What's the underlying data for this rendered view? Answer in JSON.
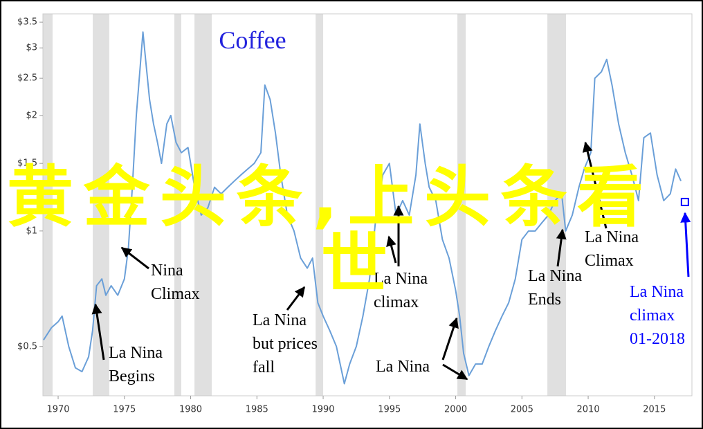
{
  "chart_data": {
    "type": "line",
    "title": "Coffee",
    "log_scale_y": true,
    "grid": false,
    "xlim": [
      1968.85,
      2017.83
    ],
    "ylim": [
      0.372,
      3.68
    ],
    "xticks": [
      1970,
      1975,
      1980,
      1985,
      1990,
      1995,
      2000,
      2005,
      2010,
      2015
    ],
    "yticks": [
      {
        "value": 0.5,
        "label": "$0.5"
      },
      {
        "value": 1,
        "label": "$1"
      },
      {
        "value": 1.5,
        "label": "$1.5"
      },
      {
        "value": 2,
        "label": "$2"
      },
      {
        "value": 2.5,
        "label": "$2.5"
      },
      {
        "value": 3,
        "label": "$3"
      },
      {
        "value": 3.5,
        "label": "$3.5"
      }
    ],
    "shaded_periods": [
      [
        1968.85,
        1969.58
      ],
      [
        1972.61,
        1973.86
      ],
      [
        1978.77,
        1979.29
      ],
      [
        1980.29,
        1981.59
      ],
      [
        1989.43,
        1990.0
      ],
      [
        2000.13,
        2000.76
      ],
      [
        2006.92,
        2008.33
      ]
    ],
    "shade_color": "#e0e0e0",
    "series": [
      {
        "name": "Coffee",
        "color": "#6a9fd8",
        "x": [
          1968.9,
          1969.5,
          1970.0,
          1970.3,
          1970.8,
          1971.3,
          1971.8,
          1972.3,
          1972.6,
          1972.9,
          1973.3,
          1973.6,
          1974.0,
          1974.5,
          1975.0,
          1975.3,
          1975.6,
          1975.9,
          1976.2,
          1976.4,
          1976.6,
          1976.9,
          1977.2,
          1977.5,
          1977.8,
          1978.2,
          1978.5,
          1978.9,
          1979.3,
          1979.8,
          1980.3,
          1980.8,
          1981.3,
          1981.8,
          1982.3,
          1982.8,
          1983.3,
          1983.8,
          1984.3,
          1984.8,
          1985.3,
          1985.6,
          1986.0,
          1986.4,
          1986.8,
          1987.3,
          1987.8,
          1988.3,
          1988.8,
          1989.2,
          1989.6,
          1990.0,
          1990.5,
          1991.0,
          1991.6,
          1992.0,
          1992.5,
          1993.0,
          1993.5,
          1994.0,
          1994.5,
          1995.0,
          1995.5,
          1996.0,
          1996.5,
          1997.0,
          1997.3,
          1997.7,
          1998.0,
          1998.5,
          1999.0,
          1999.5,
          2000.0,
          2000.3,
          2000.6,
          2001.0,
          2001.5,
          2002.0,
          2002.5,
          2003.0,
          2003.5,
          2004.0,
          2004.5,
          2005.0,
          2005.5,
          2006.0,
          2006.5,
          2007.0,
          2007.5,
          2008.0,
          2008.3,
          2008.8,
          2009.3,
          2009.7,
          2010.2,
          2010.5,
          2011.0,
          2011.4,
          2011.8,
          2012.3,
          2012.8,
          2013.3,
          2013.8,
          2014.2,
          2014.7,
          2015.2,
          2015.7,
          2016.2,
          2016.6,
          2017.0
        ],
        "values": [
          0.52,
          0.56,
          0.58,
          0.6,
          0.5,
          0.44,
          0.43,
          0.47,
          0.55,
          0.72,
          0.75,
          0.68,
          0.72,
          0.68,
          0.75,
          0.9,
          1.3,
          2.0,
          2.7,
          3.3,
          2.8,
          2.2,
          1.9,
          1.7,
          1.5,
          1.9,
          2.0,
          1.7,
          1.6,
          1.65,
          1.3,
          1.1,
          1.15,
          1.3,
          1.25,
          1.3,
          1.35,
          1.4,
          1.45,
          1.5,
          1.6,
          2.4,
          2.2,
          1.8,
          1.4,
          1.1,
          1.0,
          0.85,
          0.8,
          0.85,
          0.65,
          0.6,
          0.55,
          0.5,
          0.4,
          0.45,
          0.5,
          0.6,
          0.75,
          1.1,
          1.4,
          1.5,
          1.1,
          1.2,
          1.1,
          1.4,
          1.9,
          1.5,
          1.3,
          1.2,
          0.95,
          0.85,
          0.7,
          0.6,
          0.48,
          0.42,
          0.45,
          0.45,
          0.5,
          0.55,
          0.6,
          0.65,
          0.75,
          0.95,
          1.0,
          1.0,
          1.05,
          1.1,
          1.2,
          1.25,
          1.0,
          1.1,
          1.3,
          1.45,
          1.6,
          2.5,
          2.6,
          2.8,
          2.4,
          1.9,
          1.6,
          1.4,
          1.2,
          1.75,
          1.8,
          1.4,
          1.2,
          1.25,
          1.45,
          1.35
        ]
      }
    ],
    "marker": {
      "x": 2017.3,
      "value": 1.19,
      "color": "#0000ff"
    },
    "annotations": [
      {
        "lines": [
          "La Nina",
          "Begins"
        ]
      },
      {
        "lines": [
          "Nina",
          "Climax"
        ]
      },
      {
        "lines": [
          "La Nina",
          "but prices",
          "fall"
        ]
      },
      {
        "lines": [
          "La Nina",
          "climax"
        ]
      },
      {
        "lines": [
          "La Nina"
        ]
      },
      {
        "lines": [
          "La Nina",
          "Ends"
        ]
      },
      {
        "lines": [
          "La Nina",
          "Climax"
        ]
      },
      {
        "lines": [
          "La Nina",
          "climax",
          "01-2018"
        ],
        "color": "#0000ff"
      }
    ],
    "overlay_text": [
      "黄金头条,上头条看",
      "世"
    ],
    "overlay_color": "#ffff00"
  }
}
